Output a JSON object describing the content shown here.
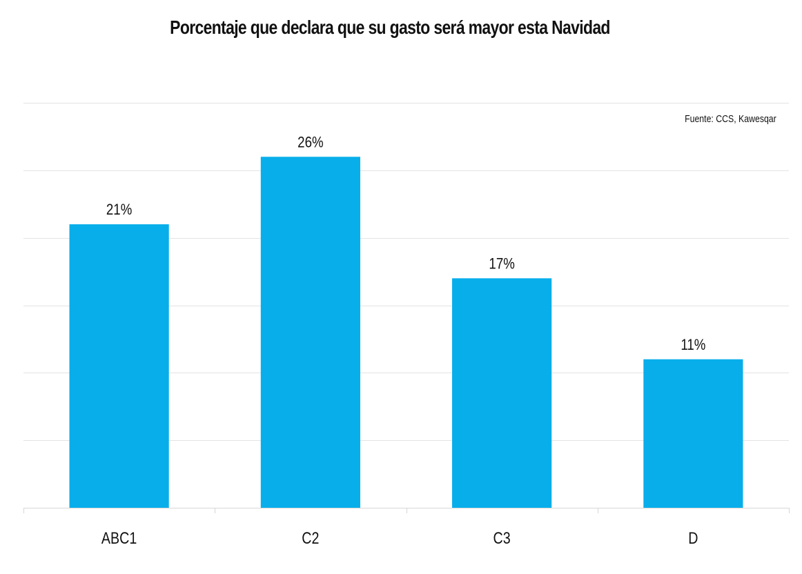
{
  "chart_data": {
    "type": "bar",
    "title": "Porcentaje que declara que su gasto será mayor esta Navidad",
    "source": "Fuente: CCS, Kawesqar",
    "categories": [
      "ABC1",
      "C2",
      "C3",
      "D"
    ],
    "values": [
      21,
      26,
      17,
      11
    ],
    "value_labels": [
      "21%",
      "26%",
      "17%",
      "11%"
    ],
    "xlabel": "",
    "ylabel": "",
    "ylim": [
      0,
      30
    ],
    "grid": true,
    "legend": "none",
    "colors": {
      "bar": "#08aeea",
      "grid": "#e3e3e3",
      "axis": "#d6d6d6",
      "text": "#111111"
    }
  }
}
